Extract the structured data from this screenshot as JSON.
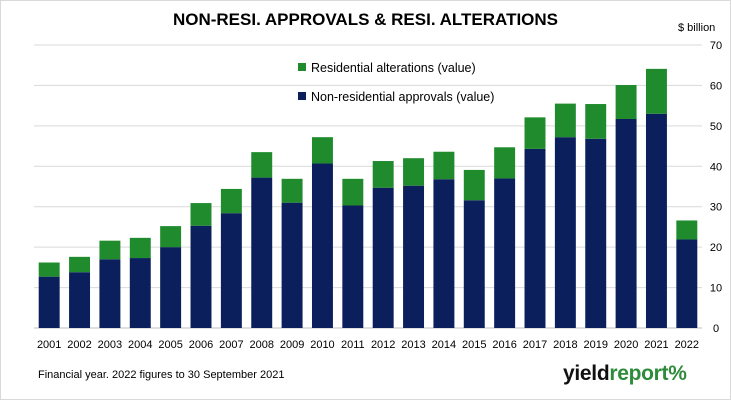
{
  "chart_data": {
    "type": "bar",
    "stacked": true,
    "title": "NON-RESI. APPROVALS & RESI. ALTERATIONS",
    "ylabel": "$ billion",
    "ylim": [
      0,
      70
    ],
    "yticks": [
      0,
      10,
      20,
      30,
      40,
      50,
      60,
      70
    ],
    "y_axis_side": "right",
    "grid": true,
    "legend_position": "top-center",
    "categories": [
      "2001",
      "2002",
      "2003",
      "2004",
      "2005",
      "2006",
      "2007",
      "2008",
      "2009",
      "2010",
      "2011",
      "2012",
      "2013",
      "2014",
      "2015",
      "2016",
      "2017",
      "2018",
      "2019",
      "2020",
      "2021",
      "2022"
    ],
    "series": [
      {
        "name": "Non-residential approvals (value)",
        "color": "#0b1f5c",
        "values": [
          12.7,
          13.8,
          17.0,
          17.3,
          20.0,
          25.3,
          28.4,
          37.2,
          31.0,
          40.7,
          30.3,
          34.7,
          35.2,
          36.8,
          31.6,
          37.0,
          44.3,
          47.2,
          46.8,
          51.7,
          53.0,
          21.9
        ]
      },
      {
        "name": "Residential alterations (value)",
        "color": "#1f8b2c",
        "values": [
          3.5,
          3.8,
          4.6,
          5.0,
          5.2,
          5.6,
          6.0,
          6.3,
          5.9,
          6.5,
          6.6,
          6.6,
          6.8,
          6.8,
          7.5,
          7.7,
          7.8,
          8.3,
          8.6,
          8.4,
          11.1,
          4.7
        ]
      }
    ],
    "legend_order": [
      1,
      0
    ],
    "footnote": "Financial year. 2022 figures to 30 September  2021"
  },
  "logo": {
    "part1": "yield",
    "part2": "report",
    "part3": "%"
  }
}
